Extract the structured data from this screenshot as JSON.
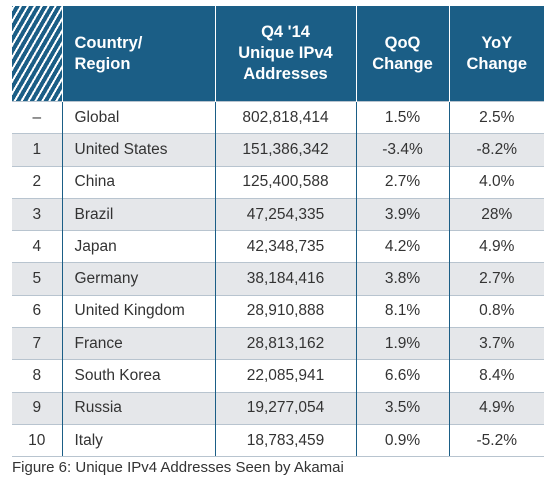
{
  "chart_data": {
    "type": "table",
    "columns": [
      "",
      "Country/\nRegion",
      "Q4 '14\nUnique IPv4\nAddresses",
      "QoQ\nChange",
      "YoY\nChange"
    ],
    "rows": [
      [
        "–",
        "Global",
        "802,818,414",
        "1.5%",
        "2.5%"
      ],
      [
        "1",
        "United States",
        "151,386,342",
        "-3.4%",
        "-8.2%"
      ],
      [
        "2",
        "China",
        "125,400,588",
        "2.7%",
        "4.0%"
      ],
      [
        "3",
        "Brazil",
        "47,254,335",
        "3.9%",
        "28%"
      ],
      [
        "4",
        "Japan",
        "42,348,735",
        "4.2%",
        "4.9%"
      ],
      [
        "5",
        "Germany",
        "38,184,416",
        "3.8%",
        "2.7%"
      ],
      [
        "6",
        "United Kingdom",
        "28,910,888",
        "8.1%",
        "0.8%"
      ],
      [
        "7",
        "France",
        "28,813,162",
        "1.9%",
        "3.7%"
      ],
      [
        "8",
        "South Korea",
        "22,085,941",
        "6.6%",
        "8.4%"
      ],
      [
        "9",
        "Russia",
        "19,277,054",
        "3.5%",
        "4.9%"
      ],
      [
        "10",
        "Italy",
        "18,783,459",
        "0.9%",
        "-5.2%"
      ]
    ],
    "caption": "Figure 6: Unique IPv4 Addresses Seen by Akamai"
  },
  "colors": {
    "header_bg": "#1b5e86",
    "header_text": "#ffffff",
    "stripe": "#e5e7ea",
    "text": "#333333"
  }
}
